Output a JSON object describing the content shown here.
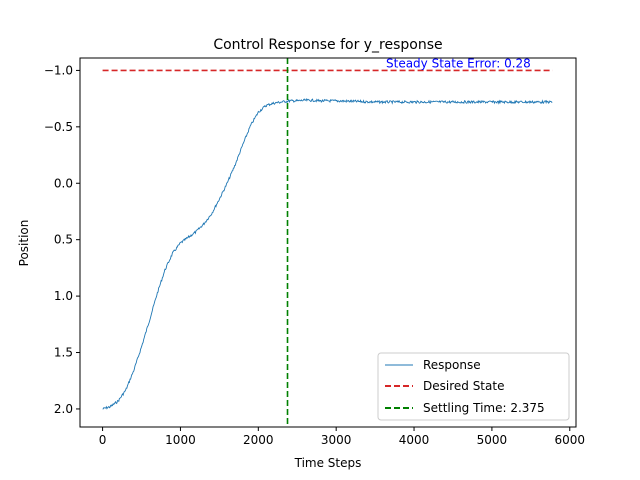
{
  "chart_data": {
    "type": "line",
    "title": "Control Response for y_response",
    "xlabel": "Time Steps",
    "ylabel": "Position",
    "xlim": [
      -290,
      6080
    ],
    "ylim": [
      2.16,
      -1.11
    ],
    "y_inverted": true,
    "xticks": [
      0,
      1000,
      2000,
      3000,
      4000,
      5000,
      6000
    ],
    "xtick_labels": [
      "0",
      "1000",
      "2000",
      "3000",
      "4000",
      "5000",
      "6000"
    ],
    "yticks": [
      -1.0,
      -0.5,
      0.0,
      0.5,
      1.0,
      1.5,
      2.0
    ],
    "ytick_labels": [
      "−1.0",
      "−0.5",
      "0.0",
      "0.5",
      "1.0",
      "1.5",
      "2.0"
    ],
    "grid": false,
    "legend_position": "lower right",
    "series": [
      {
        "name": "Response",
        "color": "#1f77b4",
        "style": "solid",
        "x": [
          0,
          100,
          200,
          300,
          400,
          500,
          600,
          700,
          800,
          900,
          1000,
          1100,
          1200,
          1300,
          1400,
          1500,
          1600,
          1700,
          1800,
          1900,
          2000,
          2100,
          2200,
          2300,
          2400,
          2500,
          2600,
          2700,
          2800,
          3000,
          3500,
          4000,
          4500,
          5000,
          5500,
          5780
        ],
        "y": [
          2.0,
          1.98,
          1.93,
          1.83,
          1.66,
          1.45,
          1.22,
          0.98,
          0.77,
          0.62,
          0.53,
          0.48,
          0.43,
          0.36,
          0.27,
          0.14,
          0.0,
          -0.16,
          -0.34,
          -0.51,
          -0.63,
          -0.69,
          -0.71,
          -0.72,
          -0.73,
          -0.73,
          -0.735,
          -0.735,
          -0.73,
          -0.73,
          -0.72,
          -0.72,
          -0.72,
          -0.72,
          -0.72,
          -0.72
        ]
      },
      {
        "name": "Desired State",
        "color": "#d62728",
        "style": "dashed",
        "x": [
          0,
          5780
        ],
        "y": [
          -1.0,
          -1.0
        ]
      }
    ],
    "vlines": [
      {
        "name": "Settling Time: 2.375",
        "x": 2375,
        "color": "#008000",
        "style": "dashed"
      }
    ],
    "annotations": [
      {
        "text": "Steady State Error: 0.28",
        "x": 3640,
        "y": -1.025,
        "color": "#0000ff"
      }
    ]
  },
  "legend": {
    "items": [
      {
        "label": "Response",
        "color": "#1f77b4",
        "style": "solid"
      },
      {
        "label": "Desired State",
        "color": "#d62728",
        "style": "dashed"
      },
      {
        "label": "Settling Time: 2.375",
        "color": "#008000",
        "style": "dashed"
      }
    ]
  }
}
